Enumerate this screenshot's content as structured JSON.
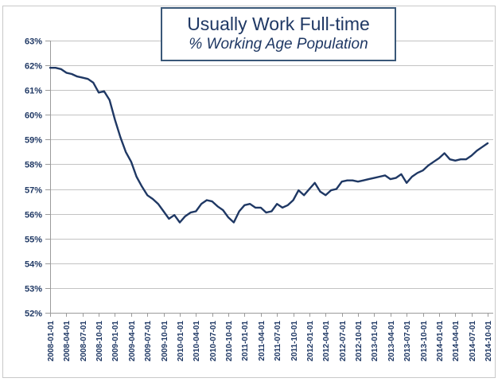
{
  "page": {
    "background": "#FFFFFF",
    "outer_border_color": "#C9C9C9"
  },
  "chart_data": {
    "type": "line",
    "title": "Usually Work Full-time",
    "subtitle": "% Working Age Population",
    "xlabel": "",
    "ylabel": "",
    "ylim": [
      52,
      63
    ],
    "y_tick_labels": [
      "52%",
      "53%",
      "54%",
      "55%",
      "56%",
      "57%",
      "58%",
      "59%",
      "60%",
      "61%",
      "62%",
      "63%"
    ],
    "x_tick_labels": [
      "2008-01-01",
      "2008-04-01",
      "2008-07-01",
      "2008-10-01",
      "2009-01-01",
      "2009-04-01",
      "2009-07-01",
      "2009-10-01",
      "2010-01-01",
      "2010-04-01",
      "2010-07-01",
      "2010-10-01",
      "2011-01-01",
      "2011-04-01",
      "2011-07-01",
      "2011-10-01",
      "2012-01-01",
      "2012-04-01",
      "2012-07-01",
      "2012-10-01",
      "2013-01-01",
      "2013-04-01",
      "2013-07-01",
      "2013-10-01",
      "2014-01-01",
      "2014-04-01",
      "2014-07-01",
      "2014-10-01"
    ],
    "x_ticks_every_n_points": 3,
    "grid": "horizontal",
    "legend": "none",
    "line_color": "#1F3864",
    "grid_color": "#C3C3C3",
    "axis_color": "#9B9B9B",
    "tick_label_color": "#1F3864",
    "series": [
      {
        "name": "Usually work full-time, % of working age population",
        "x_start": "2008-01",
        "x_frequency": "monthly",
        "values": [
          61.9,
          61.9,
          61.85,
          61.7,
          61.65,
          61.55,
          61.5,
          61.45,
          61.3,
          60.9,
          60.95,
          60.6,
          59.8,
          59.1,
          58.5,
          58.1,
          57.5,
          57.1,
          56.75,
          56.6,
          56.4,
          56.1,
          55.8,
          55.95,
          55.65,
          55.9,
          56.05,
          56.1,
          56.4,
          56.55,
          56.5,
          56.3,
          56.15,
          55.85,
          55.65,
          56.1,
          56.35,
          56.4,
          56.25,
          56.25,
          56.05,
          56.1,
          56.4,
          56.25,
          56.35,
          56.55,
          56.95,
          56.75,
          57.0,
          57.25,
          56.9,
          56.75,
          56.95,
          57.0,
          57.3,
          57.35,
          57.35,
          57.3,
          57.35,
          57.4,
          57.45,
          57.5,
          57.55,
          57.4,
          57.45,
          57.6,
          57.25,
          57.5,
          57.65,
          57.75,
          57.95,
          58.1,
          58.25,
          58.45,
          58.2,
          58.15,
          58.2,
          58.2,
          58.35,
          58.55,
          58.7,
          58.85
        ]
      }
    ]
  }
}
